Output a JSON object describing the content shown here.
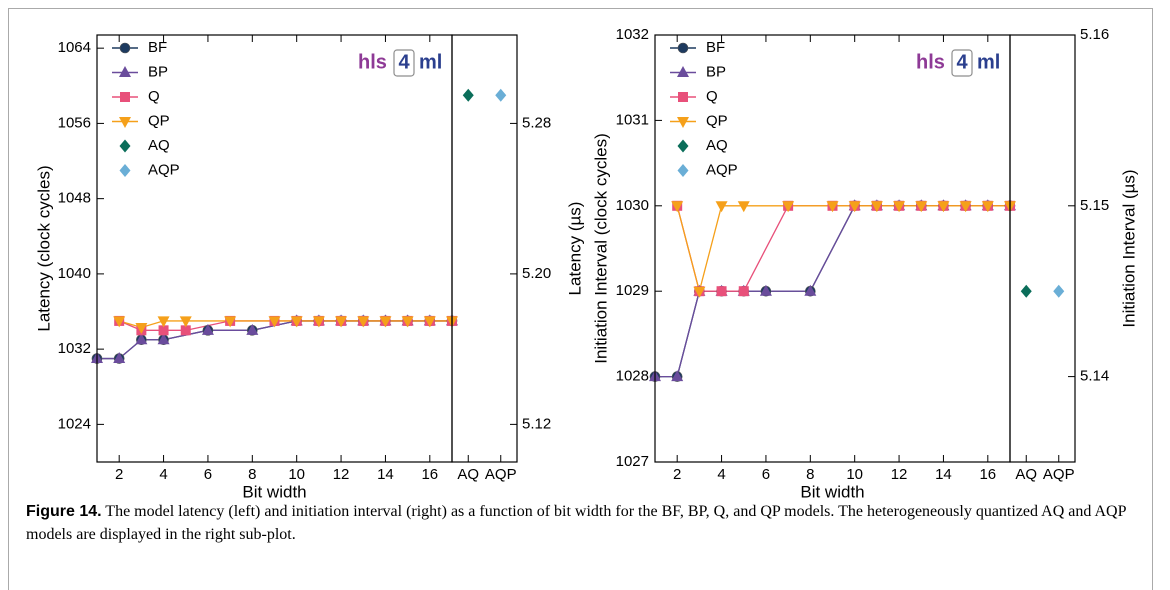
{
  "chart_data": [
    {
      "type": "line",
      "xlabel": "Bit width",
      "ylabel": "Latency (clock cycles)",
      "y2label": "Latency (µs)",
      "xlim": [
        1,
        17
      ],
      "xticks": [
        2,
        4,
        6,
        8,
        10,
        12,
        14,
        16
      ],
      "ylim": [
        1020,
        1065.4
      ],
      "yticks": [
        1024,
        1032,
        1040,
        1048,
        1056,
        1064
      ],
      "y2lim": [
        5.1,
        5.327
      ],
      "y2ticks": [
        5.12,
        {
          "value": 5.2,
          "label": "5.20"
        },
        5.28
      ],
      "series": [
        {
          "name": "BF",
          "color": "#1d3a5f",
          "marker": "circle",
          "x": [
            1,
            2,
            3,
            4,
            6,
            8,
            10,
            11,
            12,
            13,
            14,
            15,
            16,
            17
          ],
          "values": [
            1031,
            1031,
            1033,
            1033,
            1034,
            1034,
            1035,
            1035,
            1035,
            1035,
            1035,
            1035,
            1035,
            1035
          ]
        },
        {
          "name": "BP",
          "color": "#6a4c9c",
          "marker": "triangle-up",
          "x": [
            1,
            2,
            3,
            4,
            6,
            8,
            10,
            11,
            12,
            13,
            14,
            15,
            16,
            17
          ],
          "values": [
            1031,
            1031,
            1033,
            1033,
            1034,
            1034,
            1035,
            1035,
            1035,
            1035,
            1035,
            1035,
            1035,
            1035
          ]
        },
        {
          "name": "Q",
          "color": "#e8507a",
          "marker": "square",
          "x": [
            2,
            3,
            4,
            5,
            7,
            9,
            10,
            11,
            12,
            13,
            14,
            15,
            16,
            17
          ],
          "values": [
            1035,
            1034,
            1034,
            1034,
            1035,
            1035,
            1035,
            1035,
            1035,
            1035,
            1035,
            1035,
            1035,
            1035
          ]
        },
        {
          "name": "QP",
          "color": "#f5a01a",
          "marker": "triangle-down",
          "x": [
            2,
            3,
            4,
            5,
            7,
            9,
            10,
            11,
            12,
            13,
            14,
            15,
            16,
            17
          ],
          "values": [
            1035,
            1034.3,
            1035,
            1035,
            1035,
            1035,
            1035,
            1035,
            1035,
            1035,
            1035,
            1035,
            1035,
            1035
          ]
        }
      ],
      "side": {
        "categories": [
          "AQ",
          "AQP"
        ],
        "series": [
          {
            "name": "AQ",
            "color": "#0b6e5a",
            "marker": "diamond",
            "values": [
              1059,
              null
            ]
          },
          {
            "name": "AQP",
            "color": "#6aaed6",
            "marker": "diamond",
            "values": [
              null,
              1059
            ]
          }
        ]
      }
    },
    {
      "type": "line",
      "xlabel": "Bit width",
      "ylabel": "Initiation Interval (clock cycles)",
      "y2label": "Initiation Interval (µs)",
      "xlim": [
        1,
        17
      ],
      "xticks": [
        2,
        4,
        6,
        8,
        10,
        12,
        14,
        16
      ],
      "ylim": [
        1027,
        1032
      ],
      "yticks": [
        1027,
        1028,
        1029,
        1030,
        1031,
        1032
      ],
      "y2lim": [
        5.135,
        5.16
      ],
      "y2ticks": [
        5.14,
        5.15,
        5.16
      ],
      "series": [
        {
          "name": "BF",
          "color": "#1d3a5f",
          "marker": "circle",
          "x": [
            1,
            2,
            3,
            4,
            5,
            6,
            8,
            10,
            11,
            12,
            13,
            14,
            15,
            16,
            17
          ],
          "values": [
            1028,
            1028,
            1029,
            1029,
            1029,
            1029,
            1029,
            1030,
            1030,
            1030,
            1030,
            1030,
            1030,
            1030,
            1030
          ]
        },
        {
          "name": "BP",
          "color": "#6a4c9c",
          "marker": "triangle-up",
          "x": [
            1,
            2,
            3,
            4,
            5,
            6,
            8,
            10,
            11,
            12,
            13,
            14,
            15,
            16,
            17
          ],
          "values": [
            1028,
            1028,
            1029,
            1029,
            1029,
            1029,
            1029,
            1030,
            1030,
            1030,
            1030,
            1030,
            1030,
            1030,
            1030
          ]
        },
        {
          "name": "Q",
          "color": "#e8507a",
          "marker": "square",
          "x": [
            2,
            3,
            4,
            5,
            7,
            9,
            10,
            11,
            12,
            13,
            14,
            15,
            16,
            17
          ],
          "values": [
            1030,
            1029,
            1029,
            1029,
            1030,
            1030,
            1030,
            1030,
            1030,
            1030,
            1030,
            1030,
            1030,
            1030
          ]
        },
        {
          "name": "QP",
          "color": "#f5a01a",
          "marker": "triangle-down",
          "x": [
            2,
            3,
            4,
            5,
            7,
            9,
            10,
            11,
            12,
            13,
            14,
            15,
            16,
            17
          ],
          "values": [
            1030,
            1029,
            1030,
            1030,
            1030,
            1030,
            1030,
            1030,
            1030,
            1030,
            1030,
            1030,
            1030,
            1030
          ]
        }
      ],
      "side": {
        "categories": [
          "AQ",
          "AQP"
        ],
        "series": [
          {
            "name": "AQ",
            "color": "#0b6e5a",
            "marker": "diamond",
            "values": [
              1029,
              null
            ]
          },
          {
            "name": "AQP",
            "color": "#6aaed6",
            "marker": "diamond",
            "values": [
              null,
              1029
            ]
          }
        ]
      }
    }
  ],
  "logo": [
    "hls",
    "4",
    "ml"
  ],
  "caption": {
    "label": "Figure 14.",
    "text": "The model latency (left) and initiation interval (right) as a function of bit width for the BF, BP, Q, and QP models. The heterogeneously quantized AQ and AQP models are displayed in the right sub-plot."
  }
}
